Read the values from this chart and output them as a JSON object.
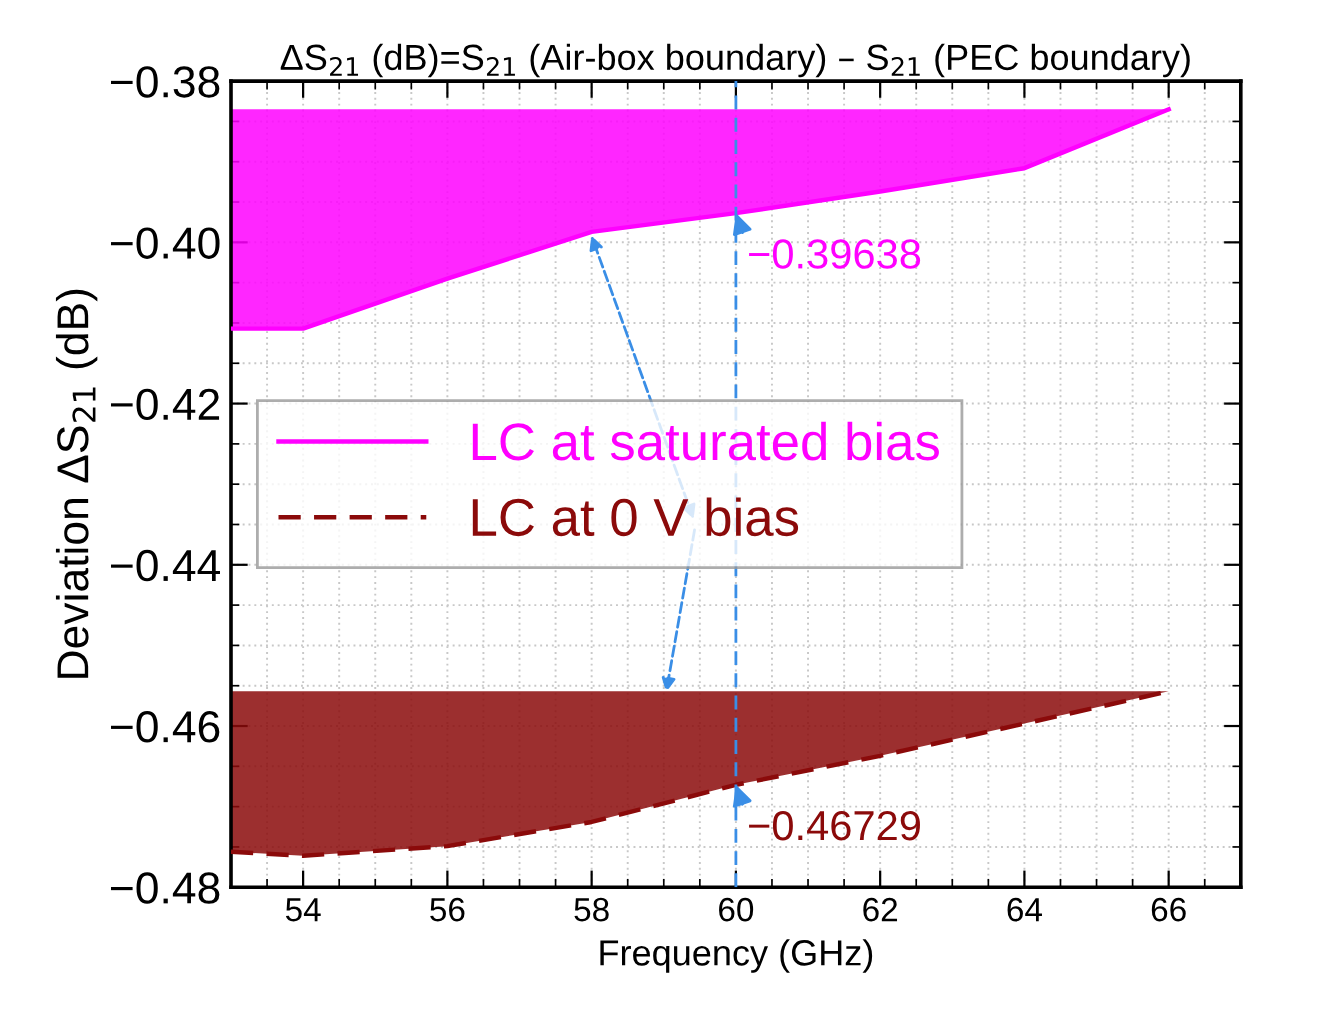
{
  "chart_data": {
    "type": "line",
    "title": "ΔS$_{21}$ (dB)=S$_{21}$ (Air-box boundary) – S$_{21}$ (PEC boundary)",
    "xlabel": "Frequency (GHz)",
    "ylabel": "Deviation ΔS$_{21}$ (dB)",
    "x": [
      53,
      54,
      56,
      58,
      60,
      62,
      64,
      66
    ],
    "series": [
      {
        "name": "LC at saturated bias",
        "color": "#ff00ff",
        "line_style": "solid",
        "values": [
          -0.4107,
          -0.4107,
          -0.4045,
          -0.3987,
          -0.39638,
          -0.3937,
          -0.3908,
          -0.3835
        ],
        "lower": [
          -0.4107,
          -0.4107,
          -0.4045,
          -0.3987,
          -0.39638,
          -0.3937,
          -0.3908,
          -0.3835
        ],
        "upper": [
          -0.3835,
          -0.3835,
          -0.3835,
          -0.3835,
          -0.3835,
          -0.3835,
          -0.3835,
          -0.3835
        ]
      },
      {
        "name": "LC at 0 V bias",
        "color": "#8b0a0a",
        "line_style": "dashed",
        "values": [
          -0.4756,
          -0.4761,
          -0.4749,
          -0.4719,
          -0.46729,
          -0.4637,
          -0.4597,
          -0.4557
        ],
        "lower": [
          -0.4756,
          -0.4761,
          -0.4749,
          -0.4719,
          -0.46729,
          -0.4637,
          -0.4597,
          -0.4557
        ],
        "upper": [
          -0.4557,
          -0.4557,
          -0.4557,
          -0.4557,
          -0.4557,
          -0.4557,
          -0.4557,
          -0.4557
        ]
      }
    ],
    "annotations": [
      {
        "text": "−0.39638",
        "x": 60,
        "y": -0.39638
      },
      {
        "text": "−0.46729",
        "x": 60,
        "y": -0.46729
      }
    ],
    "ref_lines": [
      {
        "axis": "x",
        "value": 60,
        "color": "#3a8ee6",
        "line_style": "dashed"
      }
    ],
    "xlim": [
      53,
      67
    ],
    "ylim": [
      -0.48,
      -0.38
    ],
    "xticks": [
      54,
      56,
      58,
      60,
      62,
      64,
      66
    ],
    "yticks": [
      {
        "value": -0.48,
        "label": "−0.48"
      },
      {
        "value": -0.46,
        "label": "−0.46"
      },
      {
        "value": -0.44,
        "label": "−0.44"
      },
      {
        "value": -0.42,
        "label": "−0.42"
      },
      {
        "value": -0.4,
        "label": "−0.40"
      },
      {
        "value": -0.38,
        "label": "−0.38"
      }
    ],
    "grid": true,
    "legend": "left",
    "marker": "none"
  }
}
